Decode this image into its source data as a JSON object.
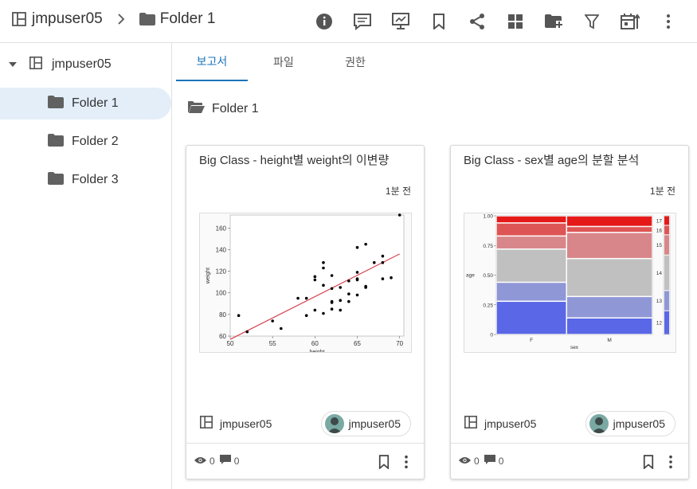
{
  "breadcrumb": {
    "root": "jmpuser05",
    "current": "Folder 1"
  },
  "toolbar": {
    "icons": [
      "info-icon",
      "comment-icon",
      "present-icon",
      "bookmark-icon",
      "share-icon",
      "grid-view-icon",
      "new-folder-icon",
      "filter-icon",
      "schedule-sort-icon",
      "more-vert-icon"
    ]
  },
  "sidebar": {
    "root_label": "jmpuser05",
    "items": [
      {
        "label": "Folder 1",
        "selected": true
      },
      {
        "label": "Folder 2",
        "selected": false
      },
      {
        "label": "Folder 3",
        "selected": false
      }
    ]
  },
  "tabs": [
    {
      "label": "보고서",
      "active": true
    },
    {
      "label": "파일",
      "active": false
    },
    {
      "label": "권한",
      "active": false
    }
  ],
  "folder_title": "Folder 1",
  "cards": [
    {
      "title": "Big Class - height별 weight의 이변량",
      "time": "1분 전",
      "owner": "jmpuser05",
      "publisher": "jmpuser05",
      "views": "0",
      "comments": "0"
    },
    {
      "title": "Big Class - sex별 age의 분할 분석",
      "time": "1분 전",
      "owner": "jmpuser05",
      "publisher": "jmpuser05",
      "views": "0",
      "comments": "0"
    }
  ],
  "chart_data": [
    {
      "type": "scatter",
      "title": "",
      "xlabel": "height",
      "ylabel": "weight",
      "xlim": [
        50,
        70.5
      ],
      "ylim": [
        60,
        172
      ],
      "x_ticks": [
        "50",
        "55",
        "60",
        "65",
        "70"
      ],
      "y_ticks": [
        "60",
        "80",
        "100",
        "120",
        "140",
        "160"
      ],
      "points": [
        [
          51,
          79
        ],
        [
          52,
          64
        ],
        [
          55,
          74
        ],
        [
          56,
          67
        ],
        [
          58,
          95
        ],
        [
          59,
          79
        ],
        [
          59,
          95
        ],
        [
          60,
          84
        ],
        [
          60,
          112
        ],
        [
          60,
          115
        ],
        [
          61,
          81
        ],
        [
          61,
          107
        ],
        [
          61,
          123
        ],
        [
          61,
          128
        ],
        [
          62,
          85
        ],
        [
          62,
          91
        ],
        [
          62,
          92
        ],
        [
          62,
          104
        ],
        [
          62,
          116
        ],
        [
          63,
          84
        ],
        [
          63,
          93
        ],
        [
          63,
          105
        ],
        [
          64,
          92
        ],
        [
          64,
          99
        ],
        [
          64,
          111
        ],
        [
          65,
          98
        ],
        [
          65,
          112
        ],
        [
          65,
          113
        ],
        [
          65,
          119
        ],
        [
          65,
          142
        ],
        [
          66,
          105
        ],
        [
          66,
          106
        ],
        [
          66,
          145
        ],
        [
          67,
          128
        ],
        [
          68,
          113
        ],
        [
          68,
          128
        ],
        [
          68,
          134
        ],
        [
          69,
          114
        ],
        [
          70,
          172
        ]
      ],
      "fit_line": [
        [
          50,
          57
        ],
        [
          70,
          136
        ]
      ],
      "colors": {
        "points": "#000000",
        "fit": "#d9414f"
      }
    },
    {
      "type": "mosaic",
      "title": "",
      "xlabel": "sex",
      "ylabel": "age",
      "categories": [
        "F",
        "M"
      ],
      "y_ticks": [
        "0",
        "0.25",
        "0.50",
        "0.75",
        "1.00"
      ],
      "levels": [
        "12",
        "13",
        "14",
        "15",
        "16",
        "17"
      ],
      "column_widths": [
        0.45,
        0.55
      ],
      "series": [
        {
          "name": "F",
          "proportions": [
            0.28,
            0.16,
            0.28,
            0.11,
            0.11,
            0.06
          ]
        },
        {
          "name": "M",
          "proportions": [
            0.14,
            0.18,
            0.32,
            0.22,
            0.05,
            0.09
          ]
        }
      ],
      "legend_proportions": [
        0.2,
        0.17,
        0.3,
        0.17,
        0.08,
        0.08
      ],
      "colors": [
        "#5a67e6",
        "#8f97d6",
        "#c0c0c0",
        "#d8868a",
        "#de5555",
        "#e61919"
      ]
    }
  ]
}
